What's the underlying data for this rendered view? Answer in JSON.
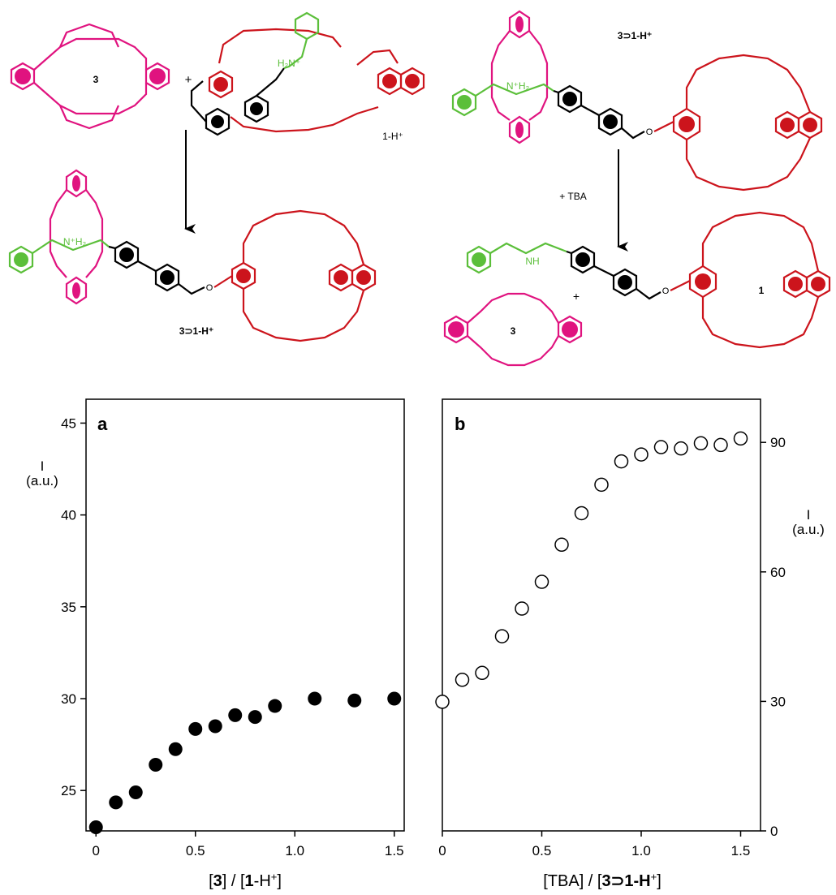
{
  "scheme": {
    "labels": {
      "crown": "3",
      "axle_salt": "1-H⁺",
      "complex_left": "3⊃1-H⁺",
      "complex_right": "3⊃1-H⁺",
      "free_axle": "1",
      "free_crown": "3",
      "plus": "+",
      "reagent": "+ TBA",
      "ammonium": "H₂N⁺",
      "ammonium_complex": "N⁺H₂",
      "amine": "NH",
      "oxygen": "O"
    },
    "colors": {
      "crown_ether": "#e0137f",
      "axle_macrocycle": "#cc141c",
      "benzylammonium": "#5bbf3a",
      "biphenyl": "#000000"
    }
  },
  "chart_data": [
    {
      "type": "scatter",
      "panel_label": "a",
      "ylabel_line1": "I",
      "ylabel_line2": "(a.u.)",
      "xlabel_parts": [
        "[",
        "3",
        "]",
        " / ",
        "[",
        "1",
        "-H",
        "+",
        "]"
      ],
      "xlim": [
        -0.05,
        1.55
      ],
      "ylim": [
        22.8,
        46.3
      ],
      "xticks": [
        "0",
        "0.5",
        "1.0",
        "1.5"
      ],
      "yticks": [
        "25",
        "30",
        "35",
        "40",
        "45"
      ],
      "marker": "filled",
      "x": [
        0,
        0.1,
        0.2,
        0.3,
        0.4,
        0.5,
        0.6,
        0.7,
        0.8,
        0.9,
        1.1,
        1.3,
        1.5
      ],
      "y": [
        23.0,
        24.35,
        24.9,
        26.4,
        27.25,
        28.35,
        28.5,
        29.1,
        29.0,
        29.6,
        30.0,
        29.9,
        30.0
      ]
    },
    {
      "type": "scatter",
      "panel_label": "b",
      "ylabel_line1": "I",
      "ylabel_line2": "(a.u.)",
      "xlabel_parts": [
        "[TBA]",
        " / ",
        "[",
        "3⊃1",
        "-H",
        "+",
        "]"
      ],
      "xlim": [
        0,
        1.6
      ],
      "ylim": [
        0,
        100
      ],
      "xticks": [
        "0",
        "0.5",
        "1.0",
        "1.5"
      ],
      "yticks": [
        "0",
        "30",
        "60",
        "90"
      ],
      "marker": "open",
      "x": [
        0,
        0.1,
        0.2,
        0.3,
        0.4,
        0.5,
        0.6,
        0.7,
        0.8,
        0.9,
        1.0,
        1.1,
        1.2,
        1.3,
        1.4,
        1.5
      ],
      "y": [
        29.9,
        35.0,
        36.6,
        45.1,
        51.5,
        57.7,
        66.3,
        73.6,
        80.2,
        85.6,
        87.2,
        88.9,
        88.6,
        89.8,
        89.4,
        90.9
      ]
    }
  ]
}
